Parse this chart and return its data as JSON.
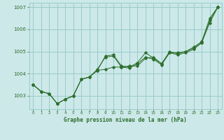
{
  "xlabel": "Graphe pression niveau de la mer (hPa)",
  "xlim": [
    -0.5,
    23.5
  ],
  "ylim": [
    1002.4,
    1007.2
  ],
  "yticks": [
    1003,
    1004,
    1005,
    1006,
    1007
  ],
  "xticks": [
    0,
    1,
    2,
    3,
    4,
    5,
    6,
    7,
    8,
    9,
    10,
    11,
    12,
    13,
    14,
    15,
    16,
    17,
    18,
    19,
    20,
    21,
    22,
    23
  ],
  "background_color": "#cce8e8",
  "grid_color": "#99cccc",
  "line_color": "#2d6e2d",
  "series": [
    [
      1003.5,
      1003.2,
      1003.1,
      1002.65,
      1002.85,
      1003.0,
      1003.75,
      1003.85,
      1004.15,
      1004.2,
      1004.3,
      1004.3,
      1004.35,
      1004.35,
      1004.7,
      1004.75,
      1004.45,
      1004.95,
      1004.95,
      1005.0,
      1005.15,
      1005.4,
      1006.4,
      1007.0
    ],
    [
      1003.5,
      1003.2,
      1003.1,
      1002.65,
      1002.85,
      1003.0,
      1003.75,
      1003.85,
      1004.15,
      1004.8,
      1004.85,
      1004.35,
      1004.3,
      1004.5,
      1004.95,
      1004.7,
      1004.45,
      1005.0,
      1004.9,
      1005.0,
      1005.2,
      1005.45,
      1006.5,
      1007.0
    ],
    [
      1003.5,
      1003.2,
      1003.1,
      1002.65,
      1002.85,
      1003.0,
      1003.75,
      1003.85,
      1004.2,
      1004.75,
      1004.8,
      1004.3,
      1004.25,
      1004.45,
      1004.75,
      1004.65,
      1004.4,
      1004.95,
      1004.85,
      1004.95,
      1005.1,
      1005.4,
      1006.3,
      1007.0
    ]
  ]
}
